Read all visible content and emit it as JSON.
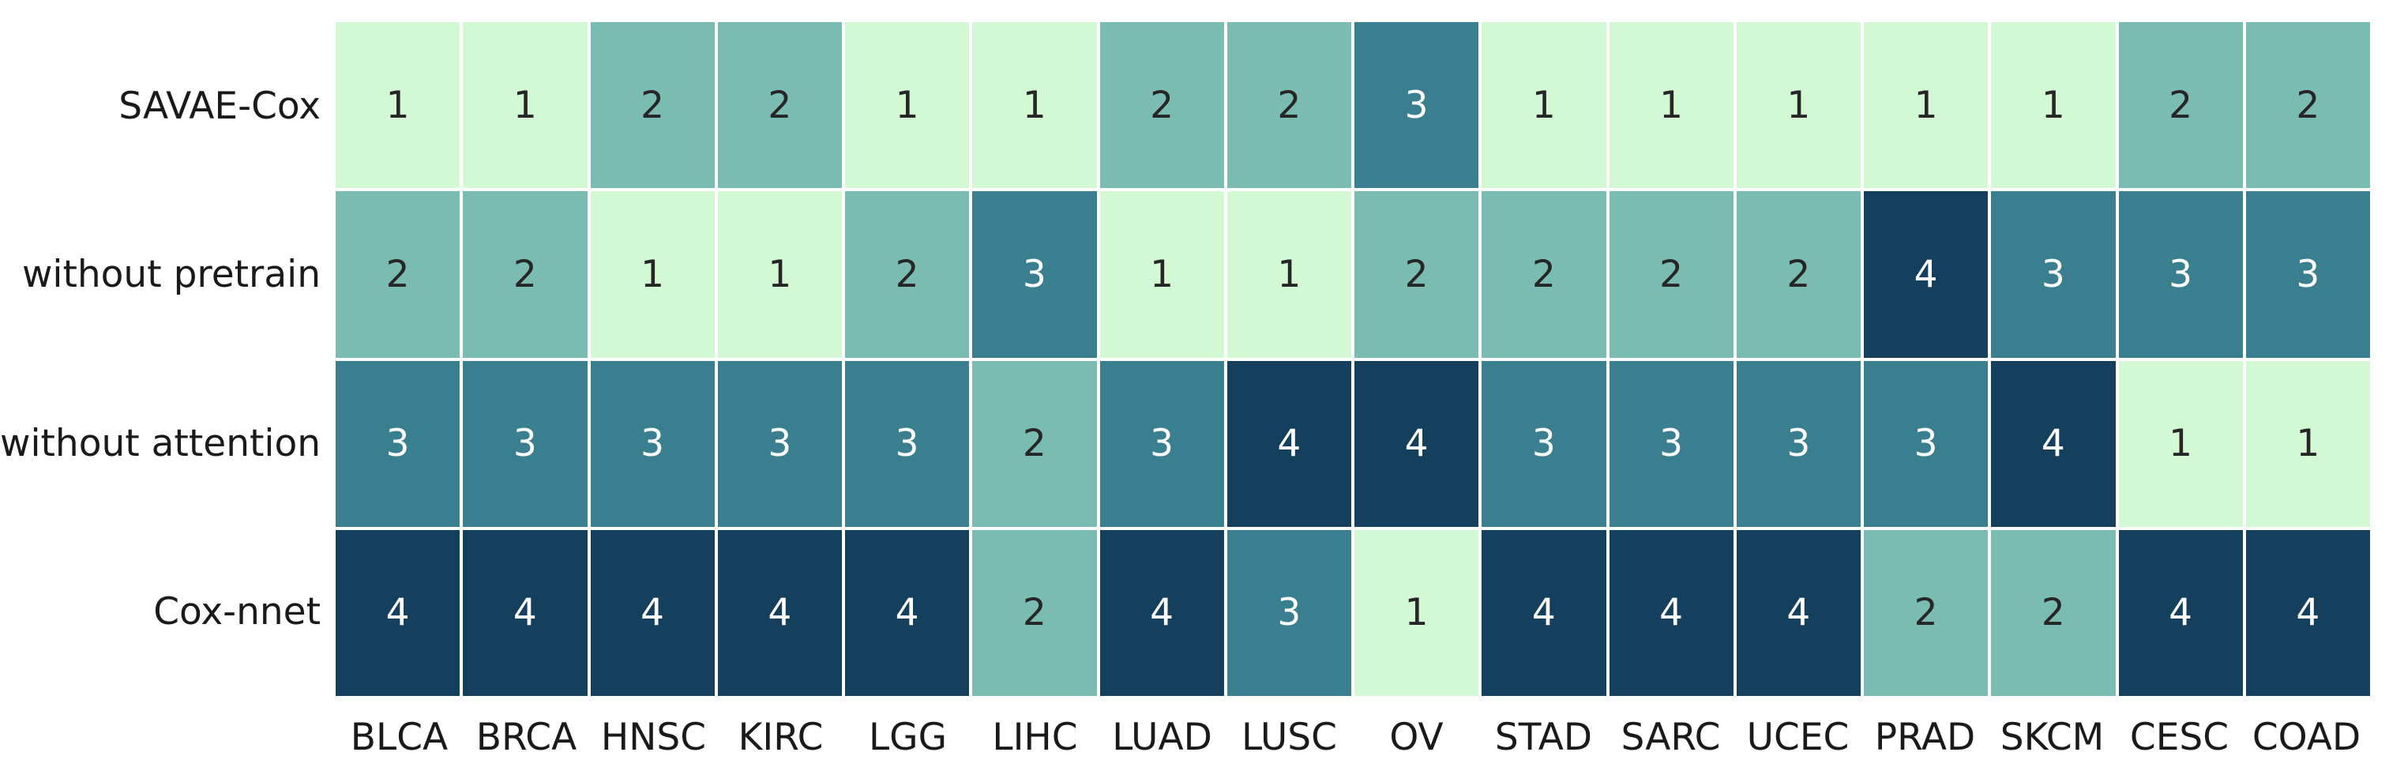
{
  "chart_data": {
    "type": "heatmap",
    "title": "",
    "xlabel": "",
    "ylabel": "",
    "legend": "none",
    "gridline_color": "#ffffff",
    "background_color": "#ffffff",
    "rows": [
      "SAVAE-Cox",
      "without pretrain",
      "without attention",
      "Cox-nnet"
    ],
    "columns": [
      "BLCA",
      "BRCA",
      "HNSC",
      "KIRC",
      "LGG",
      "LIHC",
      "LUAD",
      "LUSC",
      "OV",
      "STAD",
      "SARC",
      "UCEC",
      "PRAD",
      "SKCM",
      "CESC",
      "COAD"
    ],
    "values": [
      [
        1,
        1,
        2,
        2,
        1,
        1,
        2,
        2,
        3,
        1,
        1,
        1,
        1,
        1,
        2,
        2
      ],
      [
        2,
        2,
        1,
        1,
        2,
        3,
        1,
        1,
        2,
        2,
        2,
        2,
        4,
        3,
        3,
        3
      ],
      [
        3,
        3,
        3,
        3,
        3,
        2,
        3,
        4,
        4,
        3,
        3,
        3,
        3,
        4,
        1,
        1
      ],
      [
        4,
        4,
        4,
        4,
        4,
        2,
        4,
        3,
        1,
        4,
        4,
        4,
        2,
        2,
        4,
        4
      ]
    ],
    "value_range": [
      1,
      4
    ],
    "value_colors": {
      "1": "#d3f8d4",
      "2": "#7abcb2",
      "3": "#3a7f8f",
      "4": "#15405d"
    },
    "value_text_colors": {
      "1": "#262626",
      "2": "#262626",
      "3": "#ffffff",
      "4": "#ffffff"
    },
    "label_color": "#1a1a1a"
  }
}
